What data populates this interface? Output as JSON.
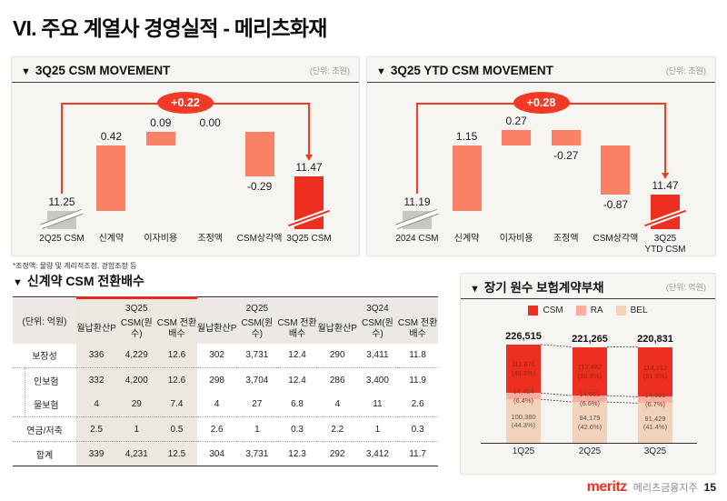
{
  "slide": {
    "title": "VI. 주요 계열사 경영실적 - 메리츠화재",
    "footnote": "*조정액: 물량 및 계리적조정, 경험조정 등",
    "footer": {
      "logo": "meritz",
      "company": "메리츠금융지주",
      "page_number": "15"
    }
  },
  "panels": {
    "movement_q": {
      "marker": "▼",
      "title": "3Q25 CSM MOVEMENT",
      "unit": "(단위: 조원)"
    },
    "movement_ytd": {
      "marker": "▼",
      "title": "3Q25 YTD CSM MOVEMENT",
      "unit": "(단위: 조원)"
    },
    "conversion": {
      "marker": "▼",
      "title": "신계약 CSM 전환배수"
    },
    "liability": {
      "marker": "▼",
      "title": "장기 원수 보험계약부채",
      "unit": "(단위: 억원)"
    }
  },
  "colors": {
    "accent_red": "#F23A26",
    "bar_red": "#EC2F1E",
    "bar_salmon": "#FA8066",
    "bar_gray": "#C9C5C0",
    "ra_pink": "#F9ACA0",
    "bel_peach": "#F3D2BB",
    "csm_text": "#9E2012",
    "ra_text": "#8A3A2A",
    "bel_text": "#5F5750"
  },
  "chart_data": [
    {
      "id": "movement_q",
      "type": "bar",
      "subtype": "waterfall",
      "title": "3Q25 CSM MOVEMENT",
      "unit": "조원",
      "net_change": "+0.22",
      "items": [
        {
          "label": "2Q25 CSM",
          "value": 11.25,
          "display": "11.25",
          "role": "base"
        },
        {
          "label": "신계약",
          "value": 0.42,
          "display": "0.42",
          "role": "delta"
        },
        {
          "label": "이자비용",
          "value": 0.09,
          "display": "0.09",
          "role": "delta"
        },
        {
          "label": "조정액",
          "value": 0.0,
          "display": "0.00",
          "role": "delta"
        },
        {
          "label": "CSM상각액",
          "value": -0.29,
          "display": "-0.29",
          "role": "delta"
        },
        {
          "label": "3Q25 CSM",
          "value": 11.47,
          "display": "11.47",
          "role": "total"
        }
      ]
    },
    {
      "id": "movement_ytd",
      "type": "bar",
      "subtype": "waterfall",
      "title": "3Q25 YTD CSM MOVEMENT",
      "unit": "조원",
      "net_change": "+0.28",
      "items": [
        {
          "label": "2024 CSM",
          "value": 11.19,
          "display": "11.19",
          "role": "base"
        },
        {
          "label": "신계약",
          "value": 1.15,
          "display": "1.15",
          "role": "delta"
        },
        {
          "label": "이자비용",
          "value": 0.27,
          "display": "0.27",
          "role": "delta"
        },
        {
          "label": "조정액",
          "value": -0.27,
          "display": "-0.27",
          "role": "delta"
        },
        {
          "label": "CSM상각액",
          "value": -0.87,
          "display": "-0.87",
          "role": "delta"
        },
        {
          "label": "3Q25\nYTD CSM",
          "value": 11.47,
          "display": "11.47",
          "role": "total"
        }
      ]
    },
    {
      "id": "conversion_table",
      "type": "table",
      "title": "신계약 CSM 전환배수",
      "unit": "억원",
      "corner_label": "(단위: 억원)",
      "col_groups": [
        "3Q25",
        "2Q25",
        "3Q24"
      ],
      "sub_columns": [
        "월납환산P",
        "CSM(원수)",
        "CSM 전환배수"
      ],
      "rows": [
        {
          "label": "보장성",
          "indent": false,
          "values": [
            "336",
            "4,229",
            "12.6",
            "302",
            "3,731",
            "12.4",
            "290",
            "3,411",
            "11.8"
          ]
        },
        {
          "label": "인보험",
          "indent": true,
          "values": [
            "332",
            "4,200",
            "12.6",
            "298",
            "3,704",
            "12.4",
            "286",
            "3,400",
            "11.9"
          ]
        },
        {
          "label": "물보험",
          "indent": true,
          "values": [
            "4",
            "29",
            "7.4",
            "4",
            "27",
            "6.8",
            "4",
            "11",
            "2.6"
          ]
        },
        {
          "label": "연금/저축",
          "indent": false,
          "values": [
            "2.5",
            "1",
            "0.5",
            "2.6",
            "1",
            "0.3",
            "2.2",
            "1",
            "0.3"
          ]
        },
        {
          "label": "합계",
          "indent": false,
          "values": [
            "339",
            "4,231",
            "12.5",
            "304",
            "3,731",
            "12.3",
            "292",
            "3,412",
            "11.7"
          ]
        }
      ]
    },
    {
      "id": "liability",
      "type": "bar",
      "subtype": "stacked",
      "title": "장기 원수 보험계약부채",
      "unit": "억원",
      "categories": [
        "1Q25",
        "2Q25",
        "3Q25"
      ],
      "totals": [
        "226,515",
        "221,265",
        "220,831"
      ],
      "series": [
        {
          "name": "CSM",
          "values": [
            111671,
            112482,
            114712
          ],
          "display": [
            "111,671",
            "112,482",
            "114,712"
          ],
          "pct": [
            "49.3%",
            "50.8%",
            "51.9%"
          ]
        },
        {
          "name": "RA",
          "values": [
            14464,
            14603,
            14691
          ],
          "display": [
            "14,464",
            "14,603",
            "14,691"
          ],
          "pct": [
            "6.4%",
            "6.6%",
            "6.7%"
          ]
        },
        {
          "name": "BEL",
          "values": [
            100380,
            94179,
            91429
          ],
          "display": [
            "100,380",
            "94,179",
            "91,429"
          ],
          "pct": [
            "44.3%",
            "42.6%",
            "41.4%"
          ]
        }
      ]
    }
  ]
}
